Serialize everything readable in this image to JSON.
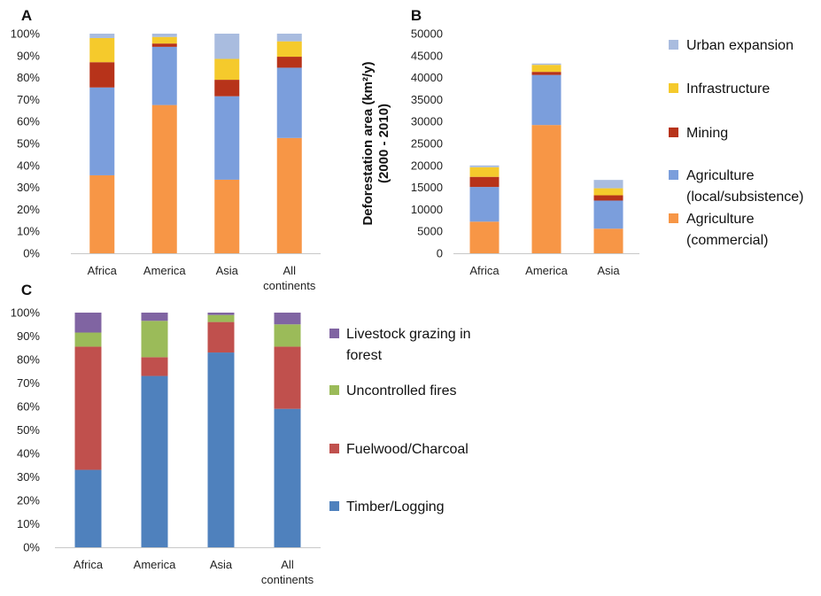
{
  "chart_data": [
    {
      "panel": "A",
      "type": "bar",
      "stacked": true,
      "categories": [
        [
          "Africa"
        ],
        [
          "America"
        ],
        [
          "Asia"
        ],
        [
          "All",
          "continents"
        ]
      ],
      "ylim": [
        0,
        100
      ],
      "yticks": [
        "0%",
        "10%",
        "20%",
        "30%",
        "40%",
        "50%",
        "60%",
        "70%",
        "80%",
        "90%",
        "100%"
      ],
      "series": [
        {
          "name": [
            "Agriculture",
            "(commercial)"
          ],
          "color": "#F79646",
          "values": [
            35.5,
            67.5,
            33.5,
            52.5
          ]
        },
        {
          "name": [
            "Agriculture",
            "(local/subsistence)"
          ],
          "color": "#7B9EDC",
          "values": [
            40.0,
            26.5,
            38.0,
            32.0
          ]
        },
        {
          "name": [
            "Mining"
          ],
          "color": "#B7331A",
          "values": [
            11.5,
            1.5,
            7.5,
            5.0
          ]
        },
        {
          "name": [
            "Infrastructure"
          ],
          "color": "#F5CA2C",
          "values": [
            11.0,
            3.0,
            9.5,
            7.0
          ]
        },
        {
          "name": [
            "Urban expansion"
          ],
          "color": "#A9BCDF",
          "values": [
            2.0,
            1.5,
            11.5,
            3.5
          ]
        }
      ]
    },
    {
      "panel": "B",
      "type": "bar",
      "stacked": true,
      "categories": [
        [
          "Africa"
        ],
        [
          "America"
        ],
        [
          "Asia"
        ]
      ],
      "ylabel": [
        "Deforestation area (km²/y)",
        "(2000 - 2010)"
      ],
      "ylim": [
        0,
        50000
      ],
      "yticks": [
        "0",
        "5000",
        "10000",
        "15000",
        "20000",
        "25000",
        "30000",
        "35000",
        "40000",
        "45000",
        "50000"
      ],
      "series": [
        {
          "name": [
            "Agriculture",
            "(commercial)"
          ],
          "color": "#F79646",
          "values": [
            7200,
            29200,
            5600
          ]
        },
        {
          "name": [
            "Agriculture",
            "(local/subsistence)"
          ],
          "color": "#7B9EDC",
          "values": [
            7900,
            11400,
            6400
          ]
        },
        {
          "name": [
            "Mining"
          ],
          "color": "#B7331A",
          "values": [
            2300,
            700,
            1200
          ]
        },
        {
          "name": [
            "Infrastructure"
          ],
          "color": "#F5CA2C",
          "values": [
            2200,
            1600,
            1600
          ]
        },
        {
          "name": [
            "Urban expansion"
          ],
          "color": "#A9BCDF",
          "values": [
            400,
            300,
            1900
          ]
        }
      ]
    },
    {
      "panel": "C",
      "type": "bar",
      "stacked": true,
      "categories": [
        [
          "Africa"
        ],
        [
          "America"
        ],
        [
          "Asia"
        ],
        [
          "All",
          "continents"
        ]
      ],
      "ylim": [
        0,
        100
      ],
      "yticks": [
        "0%",
        "10%",
        "20%",
        "30%",
        "40%",
        "50%",
        "60%",
        "70%",
        "80%",
        "90%",
        "100%"
      ],
      "series": [
        {
          "name": [
            "Timber/Logging"
          ],
          "color": "#4F81BD",
          "values": [
            33.0,
            73.0,
            83.0,
            59.0
          ]
        },
        {
          "name": [
            "Fuelwood/Charcoal"
          ],
          "color": "#C0504D",
          "values": [
            52.5,
            8.0,
            13.0,
            26.5
          ]
        },
        {
          "name": [
            "Uncontrolled fires"
          ],
          "color": "#9BBB59",
          "values": [
            6.0,
            15.5,
            3.0,
            9.5
          ]
        },
        {
          "name": [
            "Livestock grazing in",
            "forest"
          ],
          "color": "#8064A2",
          "values": [
            8.5,
            3.5,
            1.0,
            5.0
          ]
        }
      ]
    }
  ]
}
